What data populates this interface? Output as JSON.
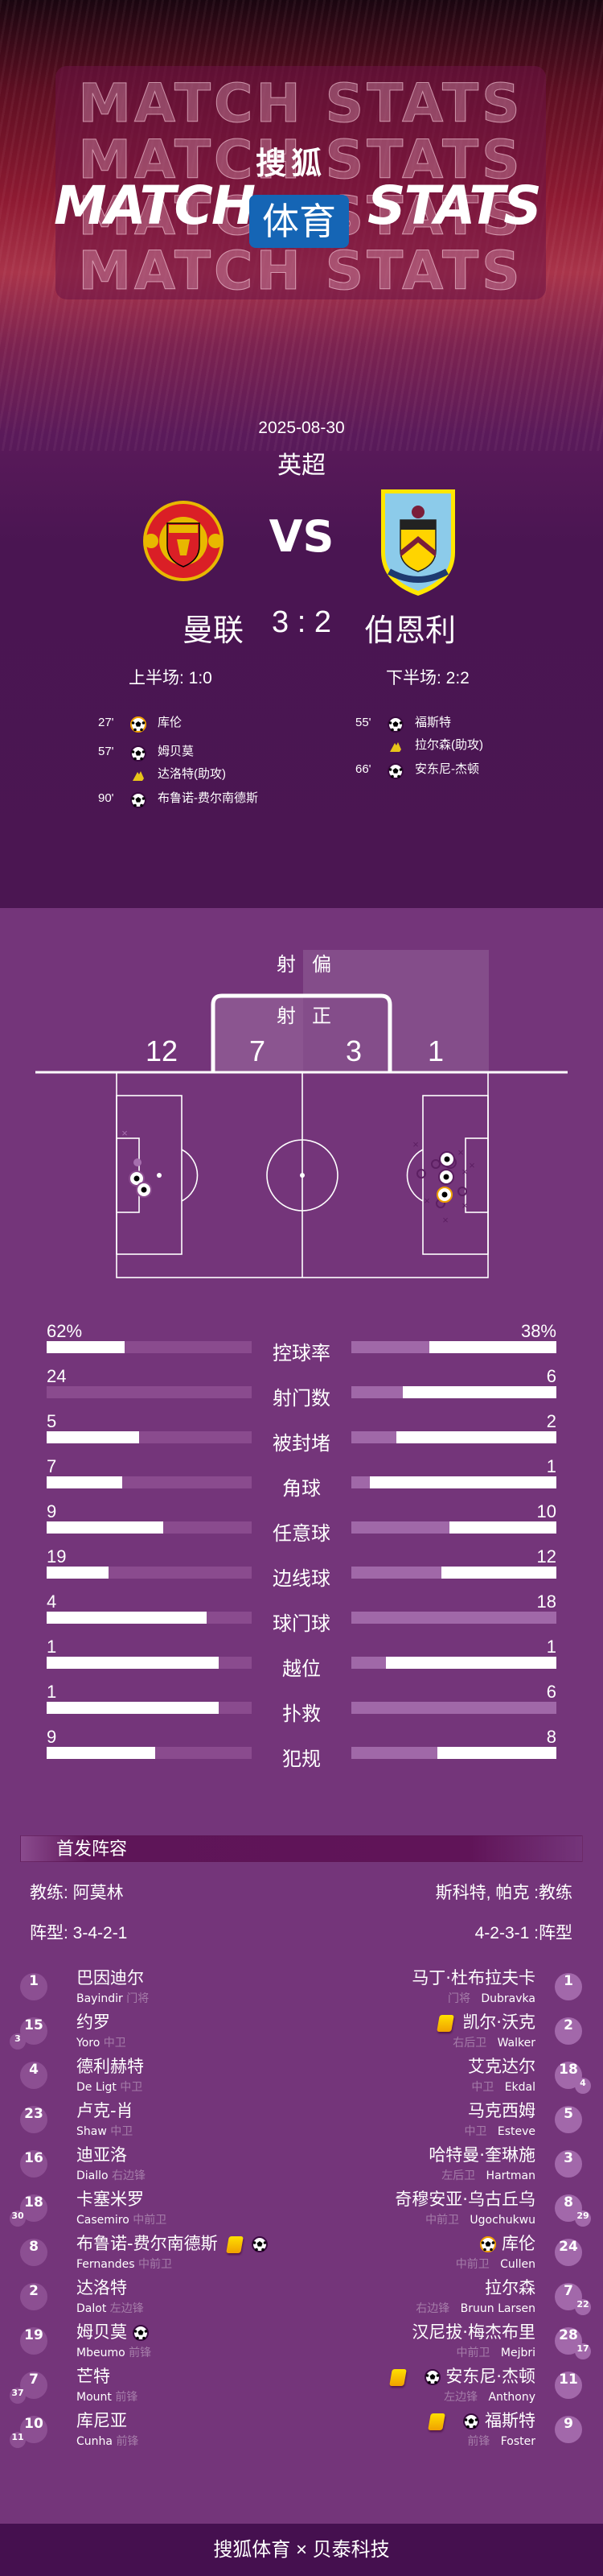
{
  "header": {
    "ghost_text": "MATCH STATS",
    "title_left": "MATCH",
    "title_right": "STATS",
    "brand_top": "搜狐",
    "brand_box": "体育"
  },
  "match": {
    "date": "2025-08-30",
    "league": "英超",
    "vs": "VS",
    "home": "曼联",
    "away": "伯恩利",
    "score": "3 : 2",
    "first_half": "上半场: 1:0",
    "second_half": "下半场: 2:2"
  },
  "events": {
    "home": [
      {
        "minute": "27'",
        "icon": "own-goal",
        "player": "库伦"
      },
      {
        "minute": "57'",
        "icon": "goal",
        "player": "姆贝莫"
      },
      {
        "minute": "",
        "icon": "assist",
        "player": "达洛特(助攻)"
      },
      {
        "minute": "90'",
        "icon": "goal",
        "player": "布鲁诺-费尔南德斯"
      }
    ],
    "away": [
      {
        "minute": "55'",
        "icon": "goal",
        "player": "福斯特"
      },
      {
        "minute": "",
        "icon": "assist",
        "player": "拉尔森(助攻)"
      },
      {
        "minute": "66'",
        "icon": "goal",
        "player": "安东尼-杰顿"
      }
    ]
  },
  "shots": {
    "off_label_1": "射",
    "off_label_2": "偏",
    "on_label_1": "射",
    "on_label_2": "正",
    "home_off": "12",
    "home_on": "7",
    "away_on": "3",
    "away_off": "1"
  },
  "stats": [
    {
      "label": "控球率",
      "home": "62%",
      "away": "38%",
      "home_fill": 0.38,
      "away_fill": 0.62
    },
    {
      "label": "射门数",
      "home": "24",
      "away": "6",
      "home_fill": 0,
      "away_fill": 0.75
    },
    {
      "label": "被封堵",
      "home": "5",
      "away": "2",
      "home_fill": 0.45,
      "away_fill": 0.78
    },
    {
      "label": "角球",
      "home": "7",
      "away": "1",
      "home_fill": 0.37,
      "away_fill": 0.91
    },
    {
      "label": "任意球",
      "home": "9",
      "away": "10",
      "home_fill": 0.57,
      "away_fill": 0.52
    },
    {
      "label": "边线球",
      "home": "19",
      "away": "12",
      "home_fill": 0.3,
      "away_fill": 0.56
    },
    {
      "label": "球门球",
      "home": "4",
      "away": "18",
      "home_fill": 0.78,
      "away_fill": 0
    },
    {
      "label": "越位",
      "home": "1",
      "away": "1",
      "home_fill": 0.84,
      "away_fill": 0.83
    },
    {
      "label": "扑救",
      "home": "1",
      "away": "6",
      "home_fill": 0.84,
      "away_fill": 0
    },
    {
      "label": "犯规",
      "home": "9",
      "away": "8",
      "home_fill": 0.53,
      "away_fill": 0.58
    }
  ],
  "lineup": {
    "title": "首发阵容",
    "home_coach": "教练: 阿莫林",
    "away_coach": "斯科特, 帕克 :教练",
    "home_formation": "阵型: 3-4-2-1",
    "away_formation": "4-2-3-1 :阵型",
    "home": [
      {
        "num": "1",
        "name": "巴因迪尔",
        "en": "Bayindir",
        "pos": "门将",
        "sub": "",
        "icons": []
      },
      {
        "num": "15",
        "name": "约罗",
        "en": "Yoro",
        "pos": "中卫",
        "sub": "3",
        "icons": []
      },
      {
        "num": "4",
        "name": "德利赫特",
        "en": "De Ligt",
        "pos": "中卫",
        "sub": "",
        "icons": []
      },
      {
        "num": "23",
        "name": "卢克-肖",
        "en": "Shaw",
        "pos": "中卫",
        "sub": "",
        "icons": []
      },
      {
        "num": "16",
        "name": "迪亚洛",
        "en": "Diallo",
        "pos": "右边锋",
        "sub": "",
        "icons": []
      },
      {
        "num": "18",
        "name": "卡塞米罗",
        "en": "Casemiro",
        "pos": "中前卫",
        "sub": "30",
        "icons": []
      },
      {
        "num": "8",
        "name": "布鲁诺-费尔南德斯",
        "en": "Fernandes",
        "pos": "中前卫",
        "sub": "",
        "icons": [
          "yellow-card",
          "goal"
        ]
      },
      {
        "num": "2",
        "name": "达洛特",
        "en": "Dalot",
        "pos": "左边锋",
        "sub": "",
        "icons": []
      },
      {
        "num": "19",
        "name": "姆贝莫",
        "en": "Mbeumo",
        "pos": "前锋",
        "sub": "",
        "icons": [
          "goal"
        ]
      },
      {
        "num": "7",
        "name": "芒特",
        "en": "Mount",
        "pos": "前锋",
        "sub": "37",
        "icons": []
      },
      {
        "num": "10",
        "name": "库尼亚",
        "en": "Cunha",
        "pos": "前锋",
        "sub": "11",
        "icons": []
      }
    ],
    "away": [
      {
        "num": "1",
        "name": "马丁·杜布拉夫卡",
        "en": "Dubravka",
        "pos": "门将",
        "sub": "",
        "icons": []
      },
      {
        "num": "2",
        "name": "凯尔·沃克",
        "en": "Walker",
        "pos": "右后卫",
        "sub": "",
        "icons": [
          "yellow-card"
        ]
      },
      {
        "num": "18",
        "name": "艾克达尔",
        "en": "Ekdal",
        "pos": "中卫",
        "sub": "4",
        "icons": []
      },
      {
        "num": "5",
        "name": "马克西姆",
        "en": "Esteve",
        "pos": "中卫",
        "sub": "",
        "icons": []
      },
      {
        "num": "3",
        "name": "哈特曼·奎琳施",
        "en": "Hartman",
        "pos": "左后卫",
        "sub": "",
        "icons": []
      },
      {
        "num": "8",
        "name": "奇穆安亚·乌古丘乌",
        "en": "Ugochukwu",
        "pos": "中前卫",
        "sub": "29",
        "icons": []
      },
      {
        "num": "24",
        "name": "库伦",
        "en": "Cullen",
        "pos": "中前卫",
        "sub": "",
        "icons": [
          "own-goal"
        ]
      },
      {
        "num": "7",
        "name": "拉尔森",
        "en": "Bruun Larsen",
        "pos": "右边锋",
        "sub": "22",
        "icons": []
      },
      {
        "num": "28",
        "name": "汉尼拔·梅杰布里",
        "en": "Mejbri",
        "pos": "中前卫",
        "sub": "17",
        "icons": []
      },
      {
        "num": "11",
        "name": "安东尼·杰顿",
        "en": "Anthony",
        "pos": "左边锋",
        "sub": "",
        "icons": [
          "yellow-card",
          "goal"
        ]
      },
      {
        "num": "9",
        "name": "福斯特",
        "en": "Foster",
        "pos": "前锋",
        "sub": "",
        "icons": [
          "yellow-card",
          "goal"
        ]
      }
    ]
  },
  "footer": {
    "text": "搜狐体育 × 贝泰科技"
  },
  "colors": {
    "hero_bg": "#4b1652",
    "content_bg": "#74357a",
    "footer_bg": "#45104f",
    "home_track": "#8a4b8e",
    "away_track": "#a068a8",
    "brand_blue": "#1565b5",
    "yellow_card": "#ffd000",
    "own_goal_ring": "#f0a000"
  }
}
